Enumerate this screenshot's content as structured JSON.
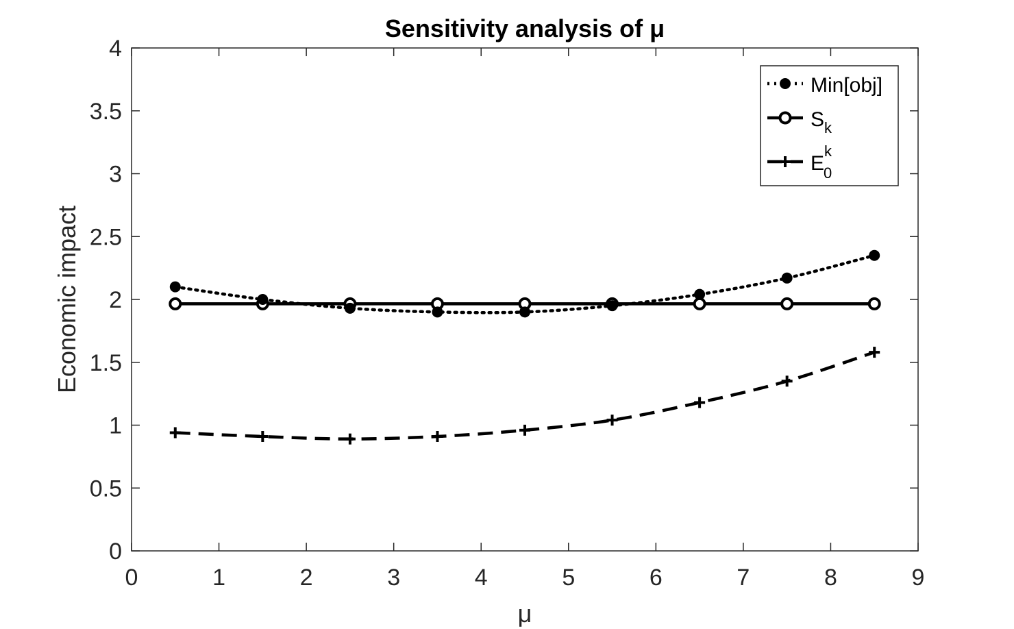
{
  "chart_data": {
    "type": "line",
    "title": "Sensitivity analysis of μ",
    "xlabel": "μ",
    "ylabel": "Economic impact",
    "xlim": [
      0,
      9
    ],
    "ylim": [
      0,
      4
    ],
    "xticks": [
      0,
      1,
      2,
      3,
      4,
      5,
      6,
      7,
      8,
      9
    ],
    "yticks": [
      0,
      0.5,
      1,
      1.5,
      2,
      2.5,
      3,
      3.5,
      4
    ],
    "x": [
      0.5,
      1.5,
      2.5,
      3.5,
      4.5,
      5.5,
      6.5,
      7.5,
      8.5
    ],
    "grid": false,
    "legend_position": "top-right",
    "series": [
      {
        "name": "Min[obj]",
        "name_parts": {
          "base": "Min[obj]",
          "sub": "",
          "sup": ""
        },
        "line_style": "dotted",
        "marker": "filled-circle",
        "values": [
          2.1,
          2.0,
          1.93,
          1.9,
          1.9,
          1.95,
          2.04,
          2.17,
          2.35
        ]
      },
      {
        "name": "Sk",
        "name_parts": {
          "base": "S",
          "sub": "k",
          "sup": ""
        },
        "line_style": "solid",
        "marker": "open-circle",
        "values": [
          1.965,
          1.965,
          1.965,
          1.965,
          1.965,
          1.965,
          1.965,
          1.965,
          1.965
        ]
      },
      {
        "name": "E0k",
        "name_parts": {
          "base": "E",
          "sub": "0",
          "sup": "k"
        },
        "line_style": "dashed",
        "marker": "plus",
        "values": [
          0.94,
          0.91,
          0.89,
          0.91,
          0.96,
          1.04,
          1.18,
          1.35,
          1.58
        ]
      }
    ]
  },
  "colors": {
    "line": "#000000",
    "axis": "#262626",
    "background": "#ffffff"
  }
}
